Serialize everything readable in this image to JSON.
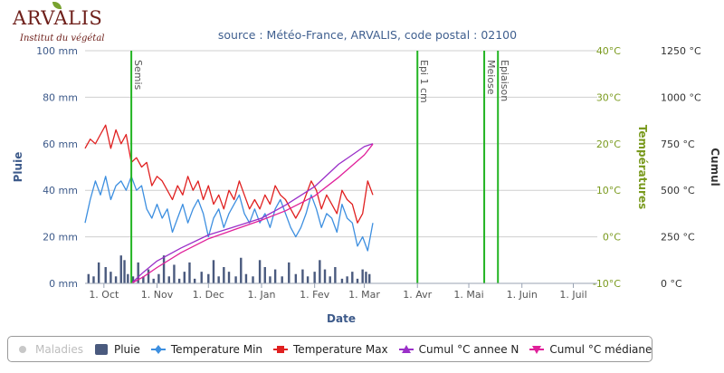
{
  "logo": {
    "word": "ARVALIS",
    "sub": "Institut du végétal"
  },
  "title": "source : Météo-France, ARVALIS, code postal : 02100",
  "xaxis": {
    "title": "Date",
    "ticks": [
      "1. Oct",
      "1. Nov",
      "1. Dec",
      "1. Jan",
      "1. Fev",
      "1. Mar",
      "1. Avr",
      "1. Mai",
      "1. Juin",
      "1. Juil"
    ]
  },
  "yaxis_rain": {
    "title": "Pluie",
    "ticks": [
      "0 mm",
      "20 mm",
      "40 mm",
      "60 mm",
      "80 mm",
      "100 mm"
    ],
    "min": 0,
    "max": 100
  },
  "yaxis_temp": {
    "title": "Températures",
    "ticks": [
      "-10°C",
      "0°C",
      "10°C",
      "20°C",
      "30°C",
      "40°C"
    ],
    "min": -10,
    "max": 40
  },
  "yaxis_cumul": {
    "title": "Cumul",
    "ticks": [
      "0 °C",
      "250 °C",
      "500 °C",
      "750 °C",
      "1000 °C",
      "1250 °C"
    ],
    "min": 0,
    "max": 1250
  },
  "colors": {
    "rain": "#4a5a7e",
    "tmin": "#3d8fe0",
    "tmax": "#e02020",
    "cumul_n": "#9a2fc8",
    "cumul_median": "#e0209a",
    "stage": "#22b422",
    "rain_axis": "#3d5a8a",
    "temp_axis": "#7a9a1e",
    "grid": "#cfcfcf"
  },
  "legend": [
    {
      "label": "Maladies",
      "symbol": "dot",
      "color": "#c8c8c8",
      "hidden": true
    },
    {
      "label": "Pluie",
      "symbol": "bar",
      "color": "#4a5a7e",
      "hidden": false
    },
    {
      "label": "Temperature Min",
      "symbol": "line-diamond",
      "color": "#3d8fe0",
      "hidden": false
    },
    {
      "label": "Temperature Max",
      "symbol": "line-square",
      "color": "#e02020",
      "hidden": false
    },
    {
      "label": "Cumul °C annee N",
      "symbol": "line-triangle",
      "color": "#9a2fc8",
      "hidden": false
    },
    {
      "label": "Cumul °C médiane",
      "symbol": "line-triangle-down",
      "color": "#e0209a",
      "hidden": false
    }
  ],
  "chart_data": {
    "type": "line",
    "title": "source : Météo-France, ARVALIS, code postal : 02100",
    "xlabel": "Date",
    "x_domain": [
      "2019-09-20",
      "2020-07-15"
    ],
    "stages": [
      {
        "label": "Semis",
        "date": "2019-10-17"
      },
      {
        "label": "Epi 1 cm",
        "date": "2020-04-01"
      },
      {
        "label": "Meiose",
        "date": "2020-05-10"
      },
      {
        "label": "Epiaison",
        "date": "2020-05-18"
      }
    ],
    "series": [
      {
        "name": "Pluie",
        "type": "bar",
        "axis": "rain",
        "unit": "mm",
        "points": [
          [
            "2019-09-22",
            4
          ],
          [
            "2019-09-25",
            3
          ],
          [
            "2019-09-28",
            9
          ],
          [
            "2019-10-02",
            7
          ],
          [
            "2019-10-05",
            5
          ],
          [
            "2019-10-08",
            3
          ],
          [
            "2019-10-11",
            12
          ],
          [
            "2019-10-13",
            10
          ],
          [
            "2019-10-15",
            4
          ],
          [
            "2019-10-18",
            3
          ],
          [
            "2019-10-21",
            9
          ],
          [
            "2019-10-24",
            3
          ],
          [
            "2019-10-27",
            6
          ],
          [
            "2019-10-30",
            2
          ],
          [
            "2019-11-02",
            4
          ],
          [
            "2019-11-05",
            12
          ],
          [
            "2019-11-08",
            3
          ],
          [
            "2019-11-11",
            8
          ],
          [
            "2019-11-14",
            2
          ],
          [
            "2019-11-17",
            5
          ],
          [
            "2019-11-20",
            9
          ],
          [
            "2019-11-23",
            2
          ],
          [
            "2019-11-27",
            5
          ],
          [
            "2019-12-01",
            4
          ],
          [
            "2019-12-04",
            10
          ],
          [
            "2019-12-07",
            3
          ],
          [
            "2019-12-10",
            7
          ],
          [
            "2019-12-13",
            5
          ],
          [
            "2019-12-17",
            3
          ],
          [
            "2019-12-20",
            11
          ],
          [
            "2019-12-23",
            4
          ],
          [
            "2019-12-27",
            3
          ],
          [
            "2019-12-31",
            10
          ],
          [
            "2020-01-03",
            7
          ],
          [
            "2020-01-06",
            3
          ],
          [
            "2020-01-09",
            6
          ],
          [
            "2020-01-13",
            3
          ],
          [
            "2020-01-17",
            9
          ],
          [
            "2020-01-21",
            4
          ],
          [
            "2020-01-25",
            6
          ],
          [
            "2020-01-28",
            3
          ],
          [
            "2020-02-01",
            5
          ],
          [
            "2020-02-04",
            10
          ],
          [
            "2020-02-07",
            6
          ],
          [
            "2020-02-10",
            3
          ],
          [
            "2020-02-13",
            7
          ],
          [
            "2020-02-17",
            2
          ],
          [
            "2020-02-20",
            3
          ],
          [
            "2020-02-23",
            5
          ],
          [
            "2020-02-26",
            2
          ],
          [
            "2020-02-29",
            6
          ],
          [
            "2020-03-02",
            5
          ],
          [
            "2020-03-04",
            4
          ]
        ]
      },
      {
        "name": "Temperature Min",
        "type": "line",
        "axis": "temp",
        "unit": "°C",
        "points": [
          [
            "2019-09-20",
            3
          ],
          [
            "2019-09-23",
            8
          ],
          [
            "2019-09-26",
            12
          ],
          [
            "2019-09-29",
            9
          ],
          [
            "2019-10-02",
            13
          ],
          [
            "2019-10-05",
            8
          ],
          [
            "2019-10-08",
            11
          ],
          [
            "2019-10-11",
            12
          ],
          [
            "2019-10-14",
            10
          ],
          [
            "2019-10-17",
            13
          ],
          [
            "2019-10-20",
            10
          ],
          [
            "2019-10-23",
            11
          ],
          [
            "2019-10-26",
            6
          ],
          [
            "2019-10-29",
            4
          ],
          [
            "2019-11-01",
            7
          ],
          [
            "2019-11-04",
            4
          ],
          [
            "2019-11-07",
            6
          ],
          [
            "2019-11-10",
            1
          ],
          [
            "2019-11-13",
            4
          ],
          [
            "2019-11-16",
            7
          ],
          [
            "2019-11-19",
            3
          ],
          [
            "2019-11-22",
            6
          ],
          [
            "2019-11-25",
            8
          ],
          [
            "2019-11-28",
            5
          ],
          [
            "2019-12-01",
            0
          ],
          [
            "2019-12-04",
            4
          ],
          [
            "2019-12-07",
            6
          ],
          [
            "2019-12-10",
            2
          ],
          [
            "2019-12-13",
            5
          ],
          [
            "2019-12-16",
            7
          ],
          [
            "2019-12-19",
            9
          ],
          [
            "2019-12-22",
            5
          ],
          [
            "2019-12-25",
            3
          ],
          [
            "2019-12-28",
            6
          ],
          [
            "2019-12-31",
            3
          ],
          [
            "2020-01-03",
            5
          ],
          [
            "2020-01-06",
            2
          ],
          [
            "2020-01-09",
            6
          ],
          [
            "2020-01-12",
            8
          ],
          [
            "2020-01-15",
            5
          ],
          [
            "2020-01-18",
            2
          ],
          [
            "2020-01-21",
            0
          ],
          [
            "2020-01-24",
            2
          ],
          [
            "2020-01-27",
            5
          ],
          [
            "2020-01-30",
            9
          ],
          [
            "2020-02-02",
            6
          ],
          [
            "2020-02-05",
            2
          ],
          [
            "2020-02-08",
            5
          ],
          [
            "2020-02-11",
            4
          ],
          [
            "2020-02-14",
            1
          ],
          [
            "2020-02-17",
            7
          ],
          [
            "2020-02-20",
            4
          ],
          [
            "2020-02-23",
            3
          ],
          [
            "2020-02-26",
            -2
          ],
          [
            "2020-02-29",
            0
          ],
          [
            "2020-03-03",
            -3
          ],
          [
            "2020-03-06",
            3
          ]
        ]
      },
      {
        "name": "Temperature Max",
        "type": "line",
        "axis": "temp",
        "unit": "°C",
        "points": [
          [
            "2019-09-20",
            19
          ],
          [
            "2019-09-23",
            21
          ],
          [
            "2019-09-26",
            20
          ],
          [
            "2019-09-29",
            22
          ],
          [
            "2019-10-02",
            24
          ],
          [
            "2019-10-05",
            19
          ],
          [
            "2019-10-08",
            23
          ],
          [
            "2019-10-11",
            20
          ],
          [
            "2019-10-14",
            22
          ],
          [
            "2019-10-17",
            16
          ],
          [
            "2019-10-20",
            17
          ],
          [
            "2019-10-23",
            15
          ],
          [
            "2019-10-26",
            16
          ],
          [
            "2019-10-29",
            11
          ],
          [
            "2019-11-01",
            13
          ],
          [
            "2019-11-04",
            12
          ],
          [
            "2019-11-07",
            10
          ],
          [
            "2019-11-10",
            8
          ],
          [
            "2019-11-13",
            11
          ],
          [
            "2019-11-16",
            9
          ],
          [
            "2019-11-19",
            13
          ],
          [
            "2019-11-22",
            10
          ],
          [
            "2019-11-25",
            12
          ],
          [
            "2019-11-28",
            8
          ],
          [
            "2019-12-01",
            11
          ],
          [
            "2019-12-04",
            7
          ],
          [
            "2019-12-07",
            9
          ],
          [
            "2019-12-10",
            6
          ],
          [
            "2019-12-13",
            10
          ],
          [
            "2019-12-16",
            8
          ],
          [
            "2019-12-19",
            12
          ],
          [
            "2019-12-22",
            9
          ],
          [
            "2019-12-25",
            6
          ],
          [
            "2019-12-28",
            8
          ],
          [
            "2019-12-31",
            6
          ],
          [
            "2020-01-03",
            9
          ],
          [
            "2020-01-06",
            7
          ],
          [
            "2020-01-09",
            11
          ],
          [
            "2020-01-12",
            9
          ],
          [
            "2020-01-15",
            8
          ],
          [
            "2020-01-18",
            6
          ],
          [
            "2020-01-21",
            4
          ],
          [
            "2020-01-24",
            6
          ],
          [
            "2020-01-27",
            9
          ],
          [
            "2020-01-30",
            12
          ],
          [
            "2020-02-02",
            10
          ],
          [
            "2020-02-05",
            6
          ],
          [
            "2020-02-08",
            9
          ],
          [
            "2020-02-11",
            7
          ],
          [
            "2020-02-14",
            5
          ],
          [
            "2020-02-17",
            10
          ],
          [
            "2020-02-20",
            8
          ],
          [
            "2020-02-23",
            7
          ],
          [
            "2020-02-26",
            3
          ],
          [
            "2020-02-29",
            5
          ],
          [
            "2020-03-03",
            12
          ],
          [
            "2020-03-06",
            9
          ]
        ]
      },
      {
        "name": "Cumul °C annee N",
        "type": "line",
        "axis": "cumul",
        "unit": "°C",
        "points": [
          [
            "2019-10-17",
            0
          ],
          [
            "2019-10-24",
            60
          ],
          [
            "2019-11-01",
            120
          ],
          [
            "2019-11-15",
            190
          ],
          [
            "2019-12-01",
            260
          ],
          [
            "2019-12-15",
            300
          ],
          [
            "2020-01-01",
            350
          ],
          [
            "2020-01-15",
            420
          ],
          [
            "2020-02-01",
            520
          ],
          [
            "2020-02-15",
            640
          ],
          [
            "2020-03-01",
            735
          ],
          [
            "2020-03-06",
            750
          ]
        ]
      },
      {
        "name": "Cumul °C médiane",
        "type": "line",
        "axis": "cumul",
        "unit": "°C",
        "points": [
          [
            "2019-10-17",
            0
          ],
          [
            "2019-10-24",
            35
          ],
          [
            "2019-11-01",
            85
          ],
          [
            "2019-11-15",
            165
          ],
          [
            "2019-12-01",
            240
          ],
          [
            "2019-12-15",
            285
          ],
          [
            "2020-01-01",
            340
          ],
          [
            "2020-01-15",
            390
          ],
          [
            "2020-02-01",
            470
          ],
          [
            "2020-02-15",
            570
          ],
          [
            "2020-03-01",
            690
          ],
          [
            "2020-03-06",
            748
          ]
        ]
      }
    ]
  }
}
